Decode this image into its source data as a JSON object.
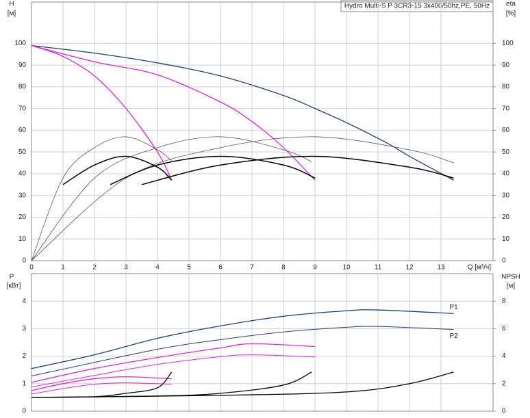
{
  "chart_data": [
    {
      "type": "line",
      "title": "Hydro Multi-S P 3CR3-15 3x400/50hz,PE, 50Hz",
      "y_label": "H",
      "y_unit": "[м]",
      "y2_label": "eta",
      "y2_unit": "[%]",
      "x_label": "Q [м³/ч]",
      "xlim": [
        0,
        14.65
      ],
      "ylim": [
        0,
        119
      ],
      "y2lim": [
        0,
        119
      ],
      "xticks": [
        0,
        1,
        2,
        3,
        4,
        5,
        6,
        7,
        8,
        9,
        10,
        11,
        12,
        13
      ],
      "yticks": [
        0,
        10,
        20,
        30,
        40,
        50,
        60,
        70,
        80,
        90,
        100
      ],
      "y2ticks": [
        0,
        10,
        20,
        30,
        40,
        50,
        60,
        70,
        80,
        90,
        100
      ],
      "grid": true,
      "series": [
        {
          "color": "#1f3f6e",
          "line_width": 1.3,
          "x": [
            0,
            2,
            4,
            6,
            8,
            9,
            10,
            11.3,
            12,
            13.4
          ],
          "values": [
            99,
            95.5,
            91,
            85,
            76,
            70,
            63.5,
            54,
            48,
            37
          ]
        },
        {
          "color": "#e020e0",
          "line_width": 1.3,
          "x": [
            0,
            2,
            4,
            6,
            7,
            8,
            9
          ],
          "values": [
            99,
            91.5,
            85.5,
            73,
            64,
            52,
            37
          ]
        },
        {
          "color": "#e020e0",
          "line_width": 1.3,
          "x": [
            0,
            1,
            2,
            3,
            4,
            4.45
          ],
          "values": [
            99,
            94,
            85,
            70,
            50,
            37
          ]
        },
        {
          "color": "#555555",
          "line_width": 0.8,
          "axis": "y2",
          "x": [
            0,
            1,
            2,
            3,
            4,
            4.45
          ],
          "values": [
            0,
            38,
            52,
            57,
            51,
            46
          ]
        },
        {
          "color": "#555555",
          "line_width": 0.8,
          "axis": "y2",
          "x": [
            0,
            2,
            4,
            6,
            8,
            8.9
          ],
          "values": [
            0,
            38,
            52,
            57,
            51,
            45.5
          ]
        },
        {
          "color": "#555555",
          "line_width": 0.8,
          "axis": "y2",
          "x": [
            0,
            3,
            6,
            9,
            12,
            13.4
          ],
          "values": [
            0,
            38,
            52,
            57,
            51,
            45
          ]
        },
        {
          "color": "#000000",
          "line_width": 1.5,
          "axis": "y2",
          "x": [
            1,
            2,
            3,
            4,
            4.45
          ],
          "values": [
            35,
            44,
            48,
            43,
            37
          ]
        },
        {
          "color": "#000000",
          "line_width": 1.5,
          "axis": "y2",
          "x": [
            2.5,
            4,
            6,
            8,
            9
          ],
          "values": [
            35,
            44,
            48,
            44,
            38
          ]
        },
        {
          "color": "#000000",
          "line_width": 1.5,
          "axis": "y2",
          "x": [
            3.5,
            6,
            9,
            12,
            13.4
          ],
          "values": [
            35,
            44,
            48,
            43,
            38
          ]
        }
      ]
    },
    {
      "type": "line",
      "y_label": "P",
      "y_unit": "[кВт]",
      "y2_label": "NPSH",
      "y2_unit": "[м]",
      "xlim": [
        0,
        14.65
      ],
      "ylim": [
        0,
        5
      ],
      "y2lim": [
        0,
        10
      ],
      "xticks": [
        0,
        1,
        2,
        3,
        4,
        5,
        6,
        7,
        8,
        9,
        10,
        11,
        12,
        13
      ],
      "yticks": [
        0,
        1,
        2,
        3,
        4
      ],
      "y2ticks": [
        0,
        2,
        4,
        6,
        8
      ],
      "grid": true,
      "series": [
        {
          "name": "P1",
          "color": "#1f3f6e",
          "line_width": 1.3,
          "x": [
            0,
            2,
            4,
            6,
            8,
            10,
            11,
            13.4
          ],
          "values": [
            1.55,
            2.05,
            2.65,
            3.1,
            3.45,
            3.65,
            3.68,
            3.55
          ]
        },
        {
          "name": "P2",
          "color": "#1f3f6e",
          "line_width": 1,
          "x": [
            0,
            4,
            6,
            8,
            10,
            11,
            13.4
          ],
          "values": [
            1.28,
            2.25,
            2.6,
            2.88,
            3.05,
            3.08,
            2.97
          ]
        },
        {
          "color": "#e020e0",
          "line_width": 1.3,
          "x": [
            0,
            2,
            4,
            6,
            7,
            9
          ],
          "values": [
            1.05,
            1.55,
            1.95,
            2.3,
            2.45,
            2.35
          ]
        },
        {
          "color": "#e020e0",
          "line_width": 1,
          "x": [
            0,
            2,
            4,
            6,
            7,
            9
          ],
          "values": [
            0.88,
            1.3,
            1.7,
            1.98,
            2.05,
            1.97
          ]
        },
        {
          "color": "#e020e0",
          "line_width": 1.3,
          "x": [
            0,
            1,
            2,
            3,
            4.45
          ],
          "values": [
            0.75,
            1.0,
            1.18,
            1.25,
            1.18
          ]
        },
        {
          "color": "#e020e0",
          "line_width": 1,
          "x": [
            0,
            1,
            2,
            3,
            4.45
          ],
          "values": [
            0.62,
            0.82,
            0.98,
            1.03,
            0.98
          ]
        },
        {
          "color": "#000000",
          "line_width": 1.3,
          "axis": "y2",
          "x": [
            0,
            2,
            3,
            4,
            4.45
          ],
          "values": [
            1.0,
            1.05,
            1.3,
            1.7,
            2.85
          ]
        },
        {
          "color": "#000000",
          "line_width": 1.3,
          "axis": "y2",
          "x": [
            0,
            4,
            6,
            8,
            8.9
          ],
          "values": [
            1.0,
            1.1,
            1.3,
            1.9,
            2.85
          ]
        },
        {
          "color": "#000000",
          "line_width": 1.3,
          "axis": "y2",
          "x": [
            0,
            6,
            10,
            12,
            13.4
          ],
          "values": [
            1.0,
            1.15,
            1.4,
            2.0,
            2.85
          ]
        }
      ]
    }
  ]
}
